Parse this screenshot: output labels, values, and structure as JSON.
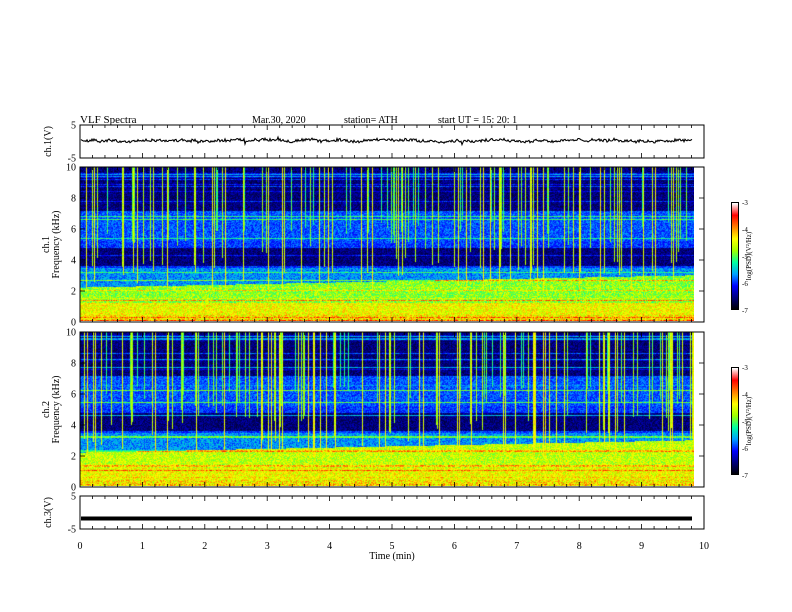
{
  "header": {
    "title": "VLF  Spectra",
    "date": "Mar.30, 2020",
    "station": "station= ATH",
    "start": "start  UT  =    15: 20: 1"
  },
  "chart_data": [
    {
      "type": "line",
      "ylabel": "ch.1(V)",
      "ylim": [
        -5,
        5
      ],
      "yticks": [
        "5",
        "-5"
      ],
      "xlim": [
        0,
        10
      ],
      "series": [
        {
          "values_description_level": 0,
          "color": "#000000"
        }
      ]
    },
    {
      "type": "heatmap",
      "ylabel": "ch.1\nFrequency  (kHz)",
      "ylabel_line1": "ch.1",
      "ylabel_line2": "Frequency  (kHz)",
      "ylim": [
        0,
        10
      ],
      "yticks": [
        "0",
        "2",
        "4",
        "6",
        "8",
        "10"
      ],
      "xlim": [
        0,
        9.8
      ],
      "colorbar": {
        "label": "log(PSD)(V²/Hz)",
        "ticks": [
          "-3",
          "-4",
          "-5",
          "-6",
          "-7"
        ],
        "range": [
          -7,
          -3
        ]
      }
    },
    {
      "type": "heatmap",
      "ylabel_line1": "ch.2",
      "ylabel_line2": "Frequency  (kHz)",
      "ylim": [
        0,
        10
      ],
      "yticks": [
        "0",
        "2",
        "4",
        "6",
        "8",
        "10"
      ],
      "xlim": [
        0,
        9.8
      ],
      "colorbar": {
        "label": "log(PSD)(V²/Hz)",
        "ticks": [
          "-3",
          "-4",
          "-5",
          "-6",
          "-7"
        ],
        "range": [
          -7,
          -3
        ]
      }
    },
    {
      "type": "line",
      "ylabel": "ch.3(V)",
      "ylim": [
        -5,
        5
      ],
      "yticks": [
        "5",
        "-5"
      ],
      "xlim": [
        0,
        10
      ],
      "series": [
        {
          "level": -1.8,
          "color": "#000000"
        }
      ]
    }
  ],
  "xaxis": {
    "label": "Time  (min)",
    "ticks": [
      "0",
      "1",
      "2",
      "3",
      "4",
      "5",
      "6",
      "7",
      "8",
      "9",
      "10"
    ],
    "range": [
      0,
      10
    ]
  },
  "colors": {
    "colormap": [
      "#000000",
      "#00007a",
      "#0000ff",
      "#00a0ff",
      "#00ffa0",
      "#a0ff00",
      "#ffff00",
      "#ff8000",
      "#ff0000",
      "#ffffff"
    ]
  }
}
